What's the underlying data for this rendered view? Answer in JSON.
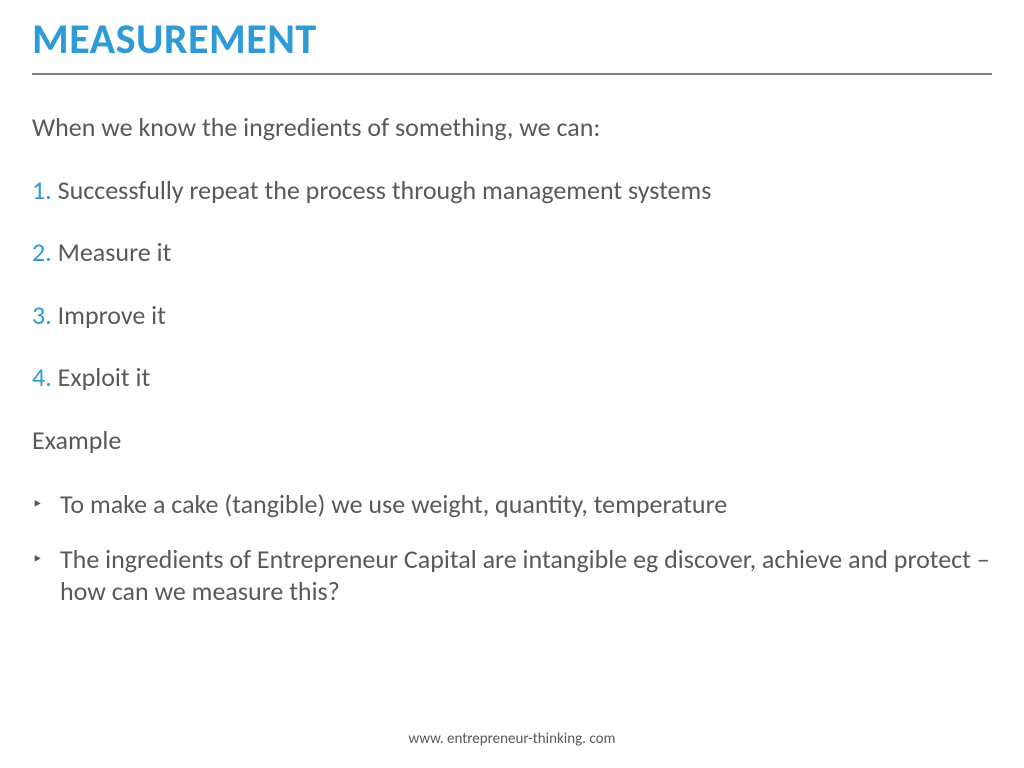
{
  "colors": {
    "title": "#2e9bd6",
    "text": "#595959",
    "num": "#2e9bd6",
    "rule": "#7f7f7f",
    "background": "#ffffff"
  },
  "fonts": {
    "title_size": 42,
    "body_size": 26,
    "footer_size": 15
  },
  "title": "MEASUREMENT",
  "intro": "When we know the ingredients of something, we can:",
  "items": [
    {
      "num": "1.",
      "text": " Successfully repeat the process through management systems"
    },
    {
      "num": "2.",
      "text": " Measure it"
    },
    {
      "num": "3.",
      "text": " Improve it"
    },
    {
      "num": "4.",
      "text": " Exploit it"
    }
  ],
  "example_label": "Example",
  "bullets": [
    "To make a cake (tangible) we use weight, quantity, temperature",
    "The ingredients of Entrepreneur Capital are intangible eg discover, achieve and protect – how can we measure this?"
  ],
  "footer": "www. entrepreneur-thinking. com"
}
